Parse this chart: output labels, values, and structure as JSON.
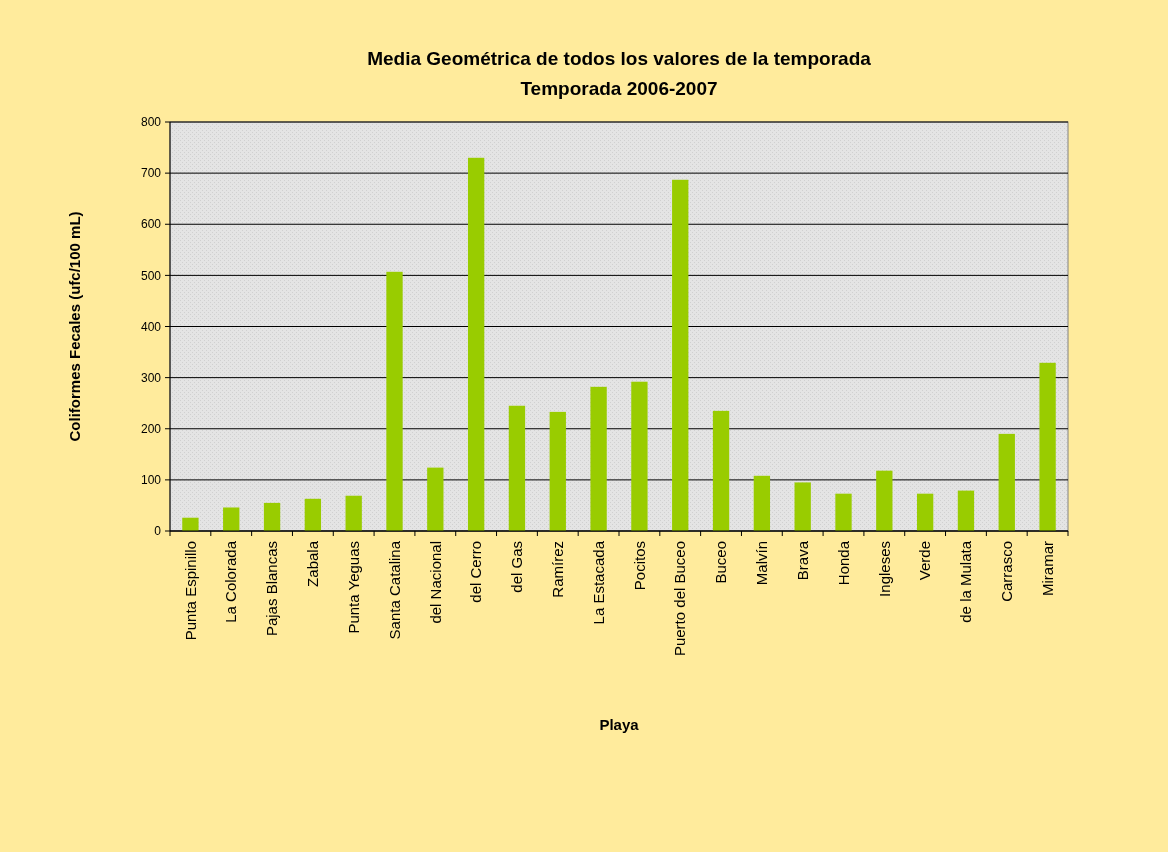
{
  "chart_data": {
    "type": "bar",
    "title": "Media Geométrica de todos los valores de la temporada",
    "subtitle": "Temporada 2006-2007",
    "xlabel": "Playa",
    "ylabel": "Coliformes Fecales (ufc/100 mL)",
    "categories": [
      "Punta Espinillo",
      "La Colorada",
      "Pajas Blancas",
      "Zabala",
      "Punta Yeguas",
      "Santa Catalina",
      "del Nacional",
      "del Cerro",
      "del Gas",
      "Ramírez",
      "La Estacada",
      "Pocitos",
      "Puerto del Buceo",
      "Buceo",
      "Malvín",
      "Brava",
      "Honda",
      "Ingleses",
      "Verde",
      "de la Mulata",
      "Carrasco",
      "Miramar"
    ],
    "values": [
      26,
      46,
      55,
      63,
      69,
      507,
      124,
      730,
      245,
      233,
      282,
      292,
      687,
      235,
      108,
      95,
      73,
      118,
      73,
      79,
      190,
      329
    ],
    "color": "#99cc00",
    "ylim": [
      0,
      800
    ],
    "yticks": [
      0,
      100,
      200,
      300,
      400,
      500,
      600,
      700,
      800
    ],
    "grid": "y"
  }
}
